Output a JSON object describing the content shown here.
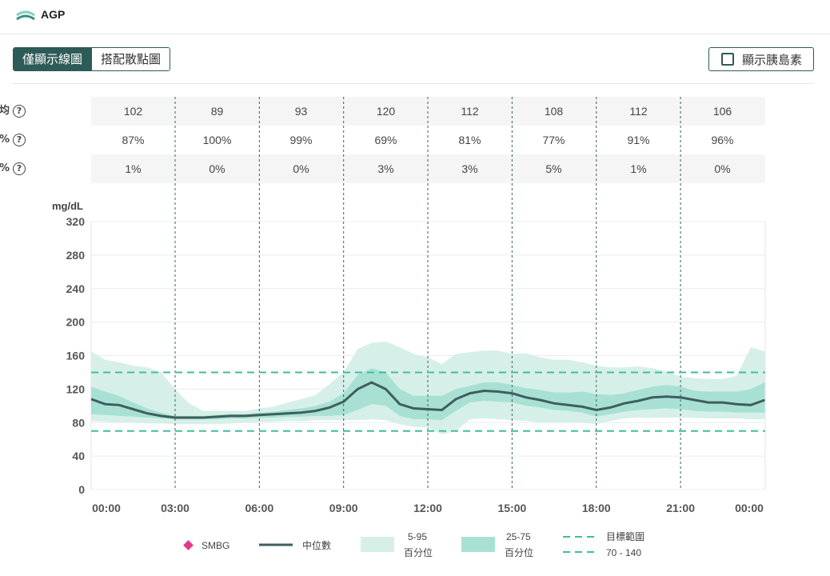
{
  "app": {
    "title": "AGP"
  },
  "view_toggle": {
    "line_only": "僅顯示線圖",
    "with_scatter": "搭配散點圖"
  },
  "insulin_toggle": {
    "label": "顯示胰島素",
    "checked": false
  },
  "stats": {
    "rows": [
      {
        "label": "平均",
        "values": [
          "102",
          "89",
          "93",
          "120",
          "112",
          "108",
          "112",
          "106"
        ]
      },
      {
        "label": "範圍內 %",
        "values": [
          "87%",
          "100%",
          "99%",
          "69%",
          "81%",
          "77%",
          "91%",
          "96%"
        ]
      },
      {
        "label": "低血糖 %",
        "values": [
          "1%",
          "0%",
          "0%",
          "3%",
          "3%",
          "5%",
          "1%",
          "0%"
        ]
      }
    ],
    "help_icon": "question-icon"
  },
  "colors": {
    "brand": "#2d5b57",
    "median": "#3d5f5d",
    "band_outer": "#d6f0e9",
    "band_inner": "#a8e1d3",
    "target": "#3dbf9e"
  },
  "chart_data": {
    "type": "area",
    "ylabel": "mg/dL",
    "ylim": [
      0,
      320
    ],
    "yticks": [
      "0",
      "40",
      "80",
      "120",
      "160",
      "200",
      "240",
      "280",
      "320"
    ],
    "xlim": [
      0,
      24
    ],
    "xticks": [
      "00:00",
      "03:00",
      "06:00",
      "09:00",
      "12:00",
      "15:00",
      "18:00",
      "21:00",
      "00:00"
    ],
    "target_range": [
      70,
      140
    ],
    "hours": [
      0,
      0.5,
      1,
      1.5,
      2,
      2.5,
      3,
      3.5,
      4,
      4.5,
      5,
      5.5,
      6,
      6.5,
      7,
      7.5,
      8,
      8.5,
      9,
      9.5,
      10,
      10.5,
      11,
      11.5,
      12,
      12.5,
      13,
      13.5,
      14,
      14.5,
      15,
      15.5,
      16,
      16.5,
      17,
      17.5,
      18,
      18.5,
      19,
      19.5,
      20,
      20.5,
      21,
      21.5,
      22,
      22.5,
      23,
      23.5,
      24
    ],
    "series": [
      {
        "name": "中位數",
        "values": [
          108,
          102,
          101,
          96,
          91,
          88,
          86,
          86,
          86,
          87,
          88,
          88,
          89,
          90,
          91,
          92,
          94,
          98,
          105,
          120,
          128,
          120,
          102,
          97,
          96,
          95,
          108,
          115,
          118,
          117,
          115,
          110,
          107,
          103,
          101,
          99,
          95,
          98,
          103,
          106,
          110,
          111,
          110,
          107,
          104,
          104,
          102,
          101,
          107
        ]
      },
      {
        "name": "25-75 百分位 (低)",
        "values": [
          90,
          89,
          88,
          87,
          86,
          85,
          84,
          84,
          84,
          84,
          85,
          85,
          86,
          86,
          87,
          87,
          88,
          88,
          89,
          95,
          102,
          100,
          88,
          84,
          84,
          83,
          94,
          104,
          106,
          105,
          104,
          100,
          98,
          95,
          94,
          92,
          87,
          90,
          93,
          95,
          96,
          97,
          96,
          94,
          93,
          93,
          92,
          92,
          92
        ]
      },
      {
        "name": "25-75 百分位 (高)",
        "values": [
          123,
          117,
          112,
          104,
          97,
          92,
          88,
          88,
          88,
          89,
          90,
          90,
          92,
          93,
          95,
          97,
          100,
          105,
          115,
          137,
          145,
          140,
          120,
          112,
          112,
          112,
          120,
          124,
          128,
          128,
          125,
          121,
          119,
          116,
          116,
          117,
          114,
          113,
          115,
          119,
          123,
          125,
          123,
          118,
          117,
          117,
          117,
          120,
          128
        ]
      },
      {
        "name": "5-95 百分位 (低)",
        "values": [
          82,
          81,
          80,
          80,
          79,
          79,
          78,
          78,
          78,
          78,
          79,
          80,
          81,
          81,
          82,
          82,
          83,
          83,
          83,
          83,
          84,
          83,
          78,
          75,
          74,
          66,
          70,
          84,
          85,
          84,
          83,
          82,
          80,
          80,
          80,
          80,
          78,
          82,
          85,
          86,
          86,
          86,
          86,
          86,
          85,
          85,
          85,
          84,
          84
        ]
      },
      {
        "name": "5-95 百分位 (高)",
        "values": [
          165,
          155,
          152,
          148,
          146,
          140,
          120,
          103,
          94,
          94,
          94,
          94,
          97,
          99,
          104,
          108,
          113,
          126,
          140,
          168,
          175,
          177,
          170,
          162,
          158,
          150,
          162,
          164,
          166,
          166,
          162,
          163,
          158,
          155,
          155,
          152,
          148,
          146,
          146,
          147,
          145,
          141,
          135,
          133,
          132,
          132,
          136,
          170,
          165
        ]
      }
    ],
    "legend": [
      {
        "key": "smbg",
        "label": "SMBG"
      },
      {
        "key": "median",
        "label": "中位數"
      },
      {
        "key": "band_outer",
        "label": "5-95",
        "sublabel": "百分位"
      },
      {
        "key": "band_inner",
        "label": "25-75",
        "sublabel": "百分位"
      },
      {
        "key": "target",
        "label": "目標範圍",
        "sublabel": "70 - 140"
      }
    ]
  }
}
